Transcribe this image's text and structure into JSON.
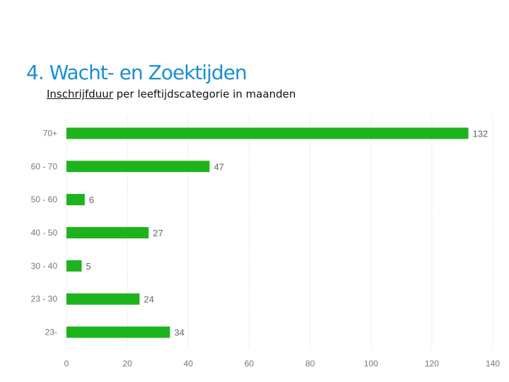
{
  "slide": {
    "title": "4. Wacht- en Zoektijden",
    "subtitle_underlined": "Inschrijfduur",
    "subtitle_rest": " per leeftijdscategorie in maanden"
  },
  "colors": {
    "bar": "#1db31d",
    "grid": "#e0e0e0",
    "tick_text": "#777777",
    "value_text": "#666666"
  },
  "chart_data": {
    "type": "bar",
    "orientation": "horizontal",
    "title": "",
    "xlabel": "",
    "ylabel": "",
    "categories": [
      "70+",
      "60 - 70",
      "50 - 60",
      "40 - 50",
      "30 - 40",
      "23 - 30",
      "23-"
    ],
    "values": [
      132,
      47,
      6,
      27,
      5,
      24,
      34
    ],
    "xlim": [
      0,
      140
    ],
    "xticks": [
      0,
      20,
      40,
      60,
      80,
      100,
      120,
      140
    ],
    "grid": true,
    "legend": "none"
  }
}
